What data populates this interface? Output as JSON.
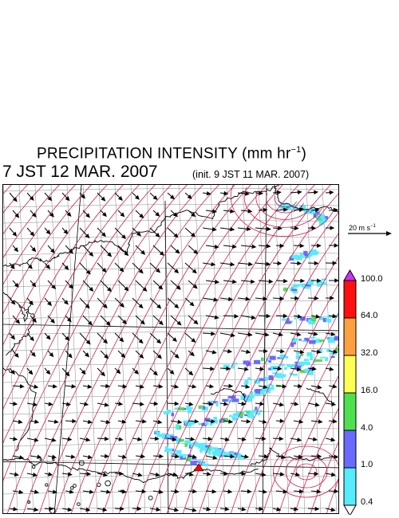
{
  "title": {
    "text": "PRECIPITATION INTENSITY (mm hr",
    "unit_exp": "−1",
    "close": ")"
  },
  "valid_time": "7 JST 12 MAR. 2007",
  "init_time": "(init. 9 JST 11 MAR. 2007)",
  "reference_vector": {
    "label": "20 m s",
    "exp": "−1"
  },
  "legend": {
    "levels": [
      "0.4",
      "1.0",
      "4.0",
      "16.0",
      "32.0",
      "64.0",
      "100.0"
    ],
    "colors": [
      "#55ecff",
      "#6a6aff",
      "#4fe04f",
      "#ffff55",
      "#ffa040",
      "#ff1010",
      "#cc33ff"
    ],
    "below_color": "#ffffff"
  },
  "map": {
    "contour_color": "#cc2255",
    "coastline_color": "#000000",
    "grid_color": "#888888",
    "wind_arrow_color": "#000000",
    "marker_color": "#ff0000"
  }
}
